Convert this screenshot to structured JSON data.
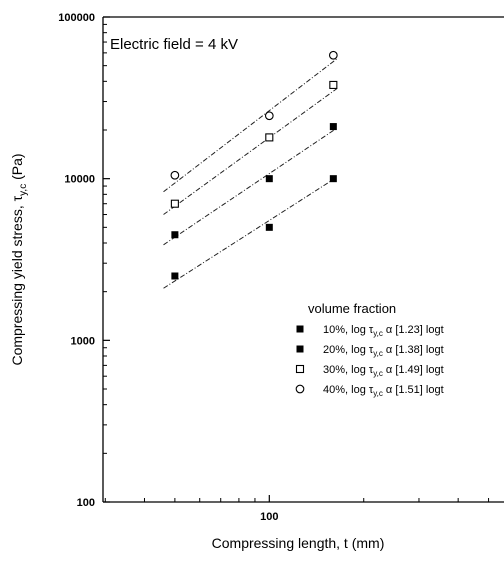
{
  "chart_data": {
    "type": "scatter",
    "annotation": "Electric field = 4 kV",
    "xlabel": "Compressing length, t (mm)",
    "ylabel": {
      "base": "Compressing yield stress, τ",
      "subscript": "y,c",
      "suffix": " (Pa)"
    },
    "x_scale": "log",
    "y_scale": "log",
    "xlim": [
      29.5,
      560
    ],
    "ylim": [
      100,
      100000
    ],
    "x_ticks": [
      {
        "value": 100,
        "label": "100"
      }
    ],
    "y_ticks": [
      {
        "value": 100,
        "label": "100"
      },
      {
        "value": 1000,
        "label": "1000"
      },
      {
        "value": 10000,
        "label": "10000"
      },
      {
        "value": 100000,
        "label": "100000"
      }
    ],
    "grid": false,
    "legend": {
      "title": "volume fraction",
      "placement": "lower-right",
      "entries": [
        {
          "prefix": "10%, log τ",
          "sub": "y,c",
          "suffix": " α [1.23] logt",
          "marker": "filled-square"
        },
        {
          "prefix": "20%, log τ",
          "sub": "y,c",
          "suffix": " α [1.38] logt",
          "marker": "filled-square"
        },
        {
          "prefix": "30%, log τ",
          "sub": "y,c",
          "suffix": " α [1.49] logt",
          "marker": "open-square"
        },
        {
          "prefix": "40%, log τ",
          "sub": "y,c",
          "suffix": " α [1.51] logt",
          "marker": "open-circle"
        }
      ]
    },
    "series": [
      {
        "marker": "filled-square",
        "x": [
          50,
          100,
          160
        ],
        "y": [
          2500,
          5000,
          10000
        ],
        "fit": {
          "x": [
            46,
            164
          ],
          "y": [
            2100,
            10200
          ]
        }
      },
      {
        "marker": "filled-square",
        "x": [
          50,
          100,
          160
        ],
        "y": [
          4500,
          10000,
          21000
        ],
        "fit": {
          "x": [
            46,
            164
          ],
          "y": [
            3900,
            20500
          ]
        }
      },
      {
        "marker": "open-square",
        "x": [
          50,
          100,
          160
        ],
        "y": [
          7000,
          18000,
          38000
        ],
        "fit": {
          "x": [
            46,
            164
          ],
          "y": [
            6000,
            36000
          ]
        }
      },
      {
        "marker": "open-circle",
        "x": [
          50,
          100,
          160
        ],
        "y": [
          10500,
          24500,
          58000
        ],
        "fit": {
          "x": [
            46,
            164
          ],
          "y": [
            8300,
            55000
          ]
        }
      }
    ]
  }
}
